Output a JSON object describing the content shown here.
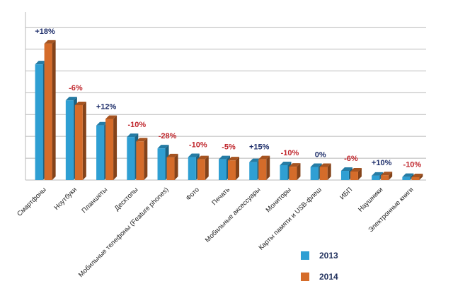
{
  "chart_data": {
    "type": "bar",
    "title": "",
    "xlabel": "",
    "ylabel": "",
    "ylim": [
      0,
      7.7
    ],
    "grid": true,
    "legend_position": "bottom-right",
    "categories": [
      "Смартфоны",
      "Ноутбуки",
      "Планшеты",
      "Десктопы",
      "Мобильные телефоны (Feature phones)",
      "Фото",
      "Печать",
      "Мобильные аксессуары",
      "Мониторы",
      "Карты памяти и USB-флеш",
      "ИБП",
      "Наушники",
      "Электронные книги"
    ],
    "series": [
      {
        "name": "2013",
        "color": "#2f9fd3",
        "values": [
          5.3,
          3.65,
          2.5,
          1.97,
          1.45,
          1.05,
          0.95,
          0.82,
          0.68,
          0.6,
          0.42,
          0.2,
          0.14
        ]
      },
      {
        "name": "2014",
        "color": "#d56c2a",
        "values": [
          6.25,
          3.43,
          2.8,
          1.77,
          1.04,
          0.95,
          0.9,
          0.95,
          0.61,
          0.6,
          0.39,
          0.22,
          0.13
        ]
      }
    ],
    "annotations": [
      "+18%",
      "-6%",
      "+12%",
      "-10%",
      "-28%",
      "-10%",
      "-5%",
      "+15%",
      "-10%",
      "0%",
      "-6%",
      "+10%",
      "-10%"
    ],
    "annotation_colors": {
      "positive": "#1f2f6b",
      "negative": "#c0272d"
    }
  }
}
